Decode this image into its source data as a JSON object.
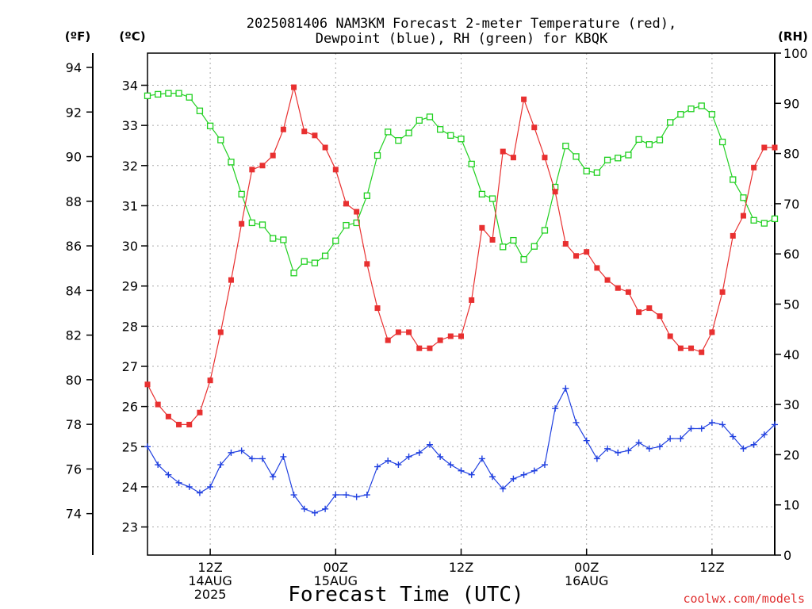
{
  "chart_data": {
    "type": "line",
    "title_line1": "2025081406 NAM3KM Forecast 2-meter Temperature (red),",
    "title_line2": "Dewpoint (blue), RH (green) for KBQK",
    "xlabel": "Forecast Time (UTC)",
    "credit": "coolwx.com/models",
    "unit_labels": {
      "fahrenheit": "(ºF)",
      "celsius": "(ºC)",
      "rh": "(RH)"
    },
    "x_start_hour": 6,
    "x_end_hour": 66,
    "x_ticks": [
      {
        "hour": 12,
        "lines": [
          "12Z",
          "14AUG",
          "2025"
        ]
      },
      {
        "hour": 24,
        "lines": [
          "00Z",
          "15AUG"
        ]
      },
      {
        "hour": 36,
        "lines": [
          "12Z"
        ]
      },
      {
        "hour": 48,
        "lines": [
          "00Z",
          "16AUG"
        ]
      },
      {
        "hour": 60,
        "lines": [
          "12Z"
        ]
      }
    ],
    "celsius_axis": {
      "range": [
        22.3,
        34.8
      ],
      "ticks": [
        "23",
        "24",
        "25",
        "26",
        "27",
        "28",
        "29",
        "30",
        "31",
        "32",
        "33",
        "34"
      ]
    },
    "fahrenheit_axis": {
      "ticks": [
        "74",
        "76",
        "78",
        "80",
        "82",
        "84",
        "86",
        "88",
        "90",
        "92",
        "94"
      ]
    },
    "rh_axis": {
      "range": [
        0,
        100
      ],
      "ticks": [
        "0",
        "10",
        "20",
        "30",
        "40",
        "50",
        "60",
        "70",
        "80",
        "90",
        "100"
      ]
    },
    "grid": true,
    "colors": {
      "temperature": "#e83030",
      "dewpoint": "#2040e0",
      "rh": "#20d020"
    },
    "series": [
      {
        "name": "Temperature",
        "unit": "ºC",
        "marker": "filled-square",
        "values": [
          26.55,
          26.05,
          25.75,
          25.55,
          25.55,
          25.85,
          26.65,
          27.85,
          29.15,
          30.55,
          31.9,
          32.0,
          32.25,
          32.9,
          33.95,
          32.85,
          32.75,
          32.45,
          31.9,
          31.05,
          30.85,
          29.55,
          28.45,
          27.65,
          27.85,
          27.85,
          27.45,
          27.45,
          27.65,
          27.75,
          27.75,
          28.65,
          30.45,
          30.15,
          32.35,
          32.2,
          33.65,
          32.95,
          32.2,
          31.35,
          30.05,
          29.75,
          29.85,
          29.45,
          29.15,
          28.95,
          28.85,
          28.35,
          28.45,
          28.25,
          27.75,
          27.45,
          27.45,
          27.35,
          27.85,
          28.85,
          30.25,
          30.75,
          31.95,
          32.45,
          32.45
        ]
      },
      {
        "name": "Dewpoint",
        "unit": "ºC",
        "marker": "plus",
        "values": [
          25.0,
          24.55,
          24.3,
          24.1,
          24.0,
          23.85,
          24.0,
          24.55,
          24.85,
          24.9,
          24.7,
          24.7,
          24.25,
          24.75,
          23.8,
          23.45,
          23.35,
          23.45,
          23.8,
          23.8,
          23.75,
          23.8,
          24.5,
          24.65,
          24.55,
          24.75,
          24.85,
          25.05,
          24.75,
          24.55,
          24.4,
          24.3,
          24.7,
          24.25,
          23.95,
          24.2,
          24.3,
          24.4,
          24.55,
          25.95,
          26.45,
          25.6,
          25.15,
          24.7,
          24.95,
          24.85,
          24.9,
          25.1,
          24.95,
          25.0,
          25.2,
          25.2,
          25.45,
          25.45,
          25.6,
          25.55,
          25.25,
          24.95,
          25.05,
          25.3,
          25.55
        ]
      },
      {
        "name": "RH",
        "unit": "%",
        "marker": "open-square",
        "values": [
          91.5,
          91.8,
          92.0,
          92.0,
          91.2,
          88.5,
          85.5,
          82.7,
          78.3,
          71.9,
          66.2,
          65.8,
          63.1,
          62.8,
          56.2,
          58.5,
          58.2,
          59.6,
          62.6,
          65.7,
          66.2,
          71.6,
          79.6,
          84.3,
          82.6,
          84.1,
          86.6,
          87.3,
          84.8,
          83.6,
          82.9,
          77.9,
          71.9,
          71.0,
          61.4,
          62.7,
          58.9,
          61.5,
          64.7,
          73.3,
          81.5,
          79.4,
          76.5,
          76.2,
          78.7,
          79.1,
          79.7,
          82.8,
          81.8,
          82.7,
          86.2,
          87.8,
          88.9,
          89.5,
          87.8,
          82.3,
          74.8,
          71.2,
          66.7,
          66.1,
          67.0
        ]
      }
    ]
  }
}
